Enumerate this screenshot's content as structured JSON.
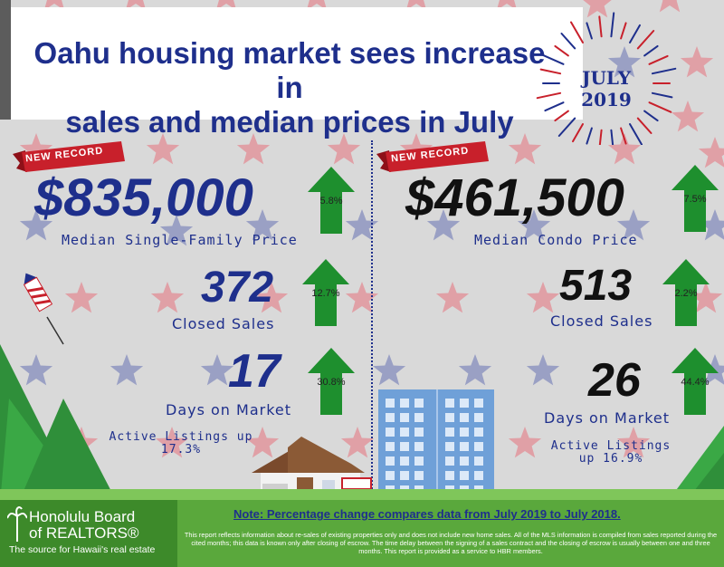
{
  "header": {
    "title_line1": "Oahu housing market sees increase in",
    "title_line2": "sales and median prices in July",
    "month": "JULY",
    "year": "2019"
  },
  "single_family": {
    "badge": "NEW RECORD",
    "median_price": "$835,000",
    "median_price_label": "Median Single-Family Price",
    "median_price_pct": "5.8%",
    "closed_sales": "372",
    "closed_sales_label": "Closed Sales",
    "closed_sales_pct": "12.7%",
    "days_on_market": "17",
    "days_on_market_label": "Days on Market",
    "days_on_market_pct": "30.8%",
    "active_listings_line1": "Active Listings up",
    "active_listings_line2": "17.3%"
  },
  "condo": {
    "badge": "NEW RECORD",
    "median_price": "$461,500",
    "median_price_label": "Median Condo Price",
    "median_price_pct": "7.5%",
    "closed_sales": "513",
    "closed_sales_label": "Closed Sales",
    "closed_sales_pct": "2.2%",
    "days_on_market": "26",
    "days_on_market_label": "Days on Market",
    "days_on_market_pct": "44.4%",
    "active_listings_line1": "Active Listings",
    "active_listings_line2": "up 16.9%"
  },
  "footer": {
    "org_line1": "Honolulu Board",
    "org_line2": "of REALTORS®",
    "org_tagline": "The source for Hawaii's real estate",
    "note": "Note: Percentage change compares data from July 2019 to July 2018.",
    "disclaimer": "This report reflects information about re-sales of existing properties only and does not include new home sales. All of the MLS information is compiled from sales reported during the cited months; this data is known only after closing of escrow. The time delay between the signing of a sales contract and the closing of escrow is usually between one and three months. This report is provided as a service to HBR members."
  },
  "colors": {
    "navy": "#1e2f8c",
    "arrow_green": "#1e8f2e",
    "ribbon_red": "#c8202b",
    "footer_green": "#5aa83c",
    "star_red": "#e0a0a6",
    "star_blue": "#9aa0c4"
  },
  "icons": [
    "star-icon",
    "up-arrow-icon",
    "firework-icon",
    "rocket-icon",
    "house-icon",
    "condo-building-icon",
    "tree-icon",
    "palm-tree-icon"
  ]
}
